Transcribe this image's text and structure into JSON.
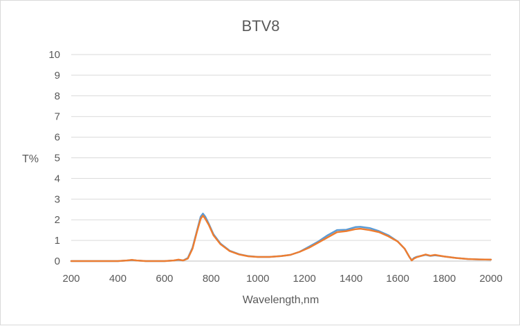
{
  "chart_data": {
    "type": "line",
    "title": "BTV8",
    "xlabel": "Wavelength,nm",
    "ylabel": "T%",
    "xlim": [
      200,
      2000
    ],
    "ylim": [
      0,
      10
    ],
    "x_ticks": [
      "200",
      "400",
      "600",
      "800",
      "1000",
      "1200",
      "1400",
      "1600",
      "1800",
      "2000"
    ],
    "y_ticks": [
      "0",
      "1",
      "2",
      "3",
      "4",
      "5",
      "6",
      "7",
      "8",
      "9",
      "10"
    ],
    "grid": true,
    "legend": "none",
    "series": [
      {
        "color": "#5b9bd5",
        "x": [
          200,
          400,
          440,
          460,
          480,
          520,
          600,
          640,
          660,
          680,
          700,
          720,
          740,
          755,
          765,
          775,
          790,
          810,
          840,
          880,
          920,
          960,
          1000,
          1050,
          1100,
          1140,
          1180,
          1220,
          1260,
          1300,
          1340,
          1380,
          1420,
          1440,
          1480,
          1520,
          1560,
          1600,
          1630,
          1650,
          1660,
          1670,
          1680,
          1700,
          1720,
          1740,
          1760,
          1800,
          1850,
          1900,
          1950,
          2000
        ],
        "y": [
          0,
          0,
          0.03,
          0.05,
          0.03,
          0,
          0,
          0.03,
          0.06,
          0.03,
          0.15,
          0.65,
          1.5,
          2.15,
          2.3,
          2.15,
          1.8,
          1.3,
          0.85,
          0.5,
          0.33,
          0.24,
          0.2,
          0.2,
          0.24,
          0.3,
          0.45,
          0.7,
          0.95,
          1.25,
          1.5,
          1.52,
          1.65,
          1.66,
          1.6,
          1.45,
          1.25,
          0.95,
          0.6,
          0.2,
          0.05,
          0.15,
          0.2,
          0.25,
          0.3,
          0.25,
          0.28,
          0.22,
          0.15,
          0.1,
          0.08,
          0.07
        ]
      },
      {
        "color": "#ed7d31",
        "x": [
          200,
          400,
          440,
          460,
          480,
          520,
          600,
          640,
          660,
          680,
          700,
          720,
          740,
          755,
          765,
          775,
          790,
          810,
          840,
          880,
          920,
          960,
          1000,
          1050,
          1100,
          1140,
          1180,
          1220,
          1260,
          1300,
          1340,
          1380,
          1420,
          1440,
          1480,
          1520,
          1560,
          1600,
          1630,
          1650,
          1660,
          1670,
          1680,
          1700,
          1720,
          1740,
          1760,
          1800,
          1850,
          1900,
          1950,
          2000
        ],
        "y": [
          0,
          0,
          0.03,
          0.06,
          0.03,
          0,
          0,
          0.03,
          0.07,
          0.03,
          0.12,
          0.6,
          1.45,
          2.05,
          2.2,
          2.05,
          1.75,
          1.25,
          0.82,
          0.48,
          0.32,
          0.23,
          0.2,
          0.2,
          0.24,
          0.3,
          0.45,
          0.65,
          0.9,
          1.15,
          1.4,
          1.45,
          1.55,
          1.57,
          1.5,
          1.4,
          1.2,
          0.95,
          0.6,
          0.2,
          0.03,
          0.12,
          0.18,
          0.25,
          0.32,
          0.26,
          0.3,
          0.22,
          0.15,
          0.1,
          0.08,
          0.07
        ]
      }
    ]
  }
}
